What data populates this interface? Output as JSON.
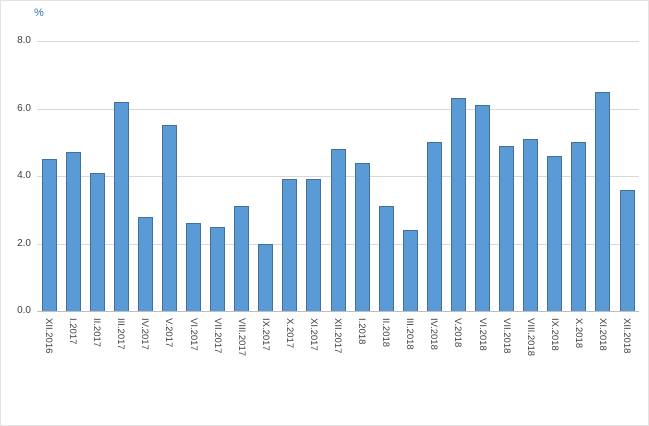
{
  "chart_data": {
    "type": "bar",
    "title": "",
    "xlabel": "",
    "ylabel": "%",
    "ylim": [
      0,
      8
    ],
    "yticks": [
      0,
      2,
      4,
      6,
      8
    ],
    "ytick_labels": [
      "0.0",
      "2.0",
      "4.0",
      "6.0",
      "8.0"
    ],
    "grid": true,
    "legend": false,
    "bar_color": "#5B9BD5",
    "bar_border_color": "#41719C",
    "gridline_color": "#D9D9D9",
    "axis_line_color": "#BFBFBF",
    "categories": [
      "XII.2016",
      "I.2017",
      "II.2017",
      "III.2017",
      "IV.2017",
      "V.2017",
      "VI.2017",
      "VII.2017",
      "VIII.2017",
      "IX.2017",
      "X.2017",
      "XI.2017",
      "XII.2017",
      "I.2018",
      "II.2018",
      "III.2018",
      "IV.2018",
      "V.2018",
      "VI.2018",
      "VII.2018",
      "VIII.2018",
      "IX.2018",
      "X.2018",
      "XI.2018",
      "XII.2018"
    ],
    "values": [
      4.5,
      4.7,
      4.1,
      6.2,
      2.8,
      5.5,
      2.6,
      2.5,
      3.1,
      2.0,
      3.9,
      3.9,
      4.8,
      4.4,
      3.1,
      2.4,
      5.0,
      6.3,
      6.1,
      4.9,
      5.1,
      4.6,
      5.0,
      6.5,
      3.6
    ]
  }
}
